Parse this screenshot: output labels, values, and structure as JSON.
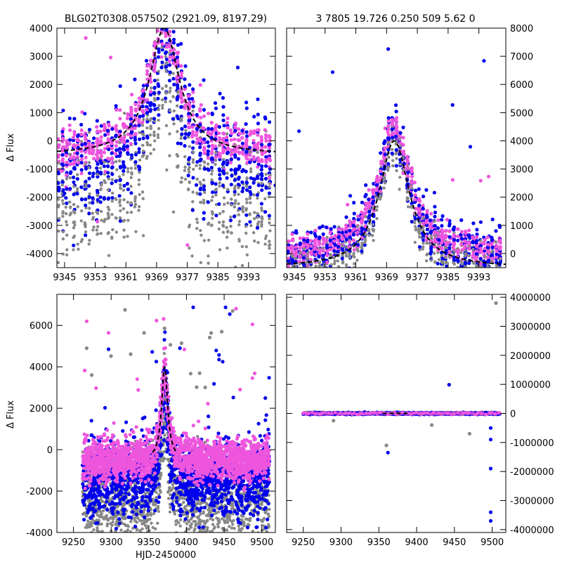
{
  "figure": {
    "title_left": "BLG02T0308.057502 (2921.09, 8197.29)",
    "title_right": "3 7805 19.726 0.250 509   5.62     0"
  },
  "colors": {
    "grey": "#888888",
    "blue": "#0000ee",
    "pink": "#ee55dd",
    "model": "#000000"
  },
  "chart_data": [
    {
      "type": "scatter",
      "name": "top-left",
      "xlim": [
        9343,
        9400
      ],
      "ylim": [
        -4500,
        4000
      ],
      "xticks": [
        9345,
        9353,
        9361,
        9369,
        9377,
        9385,
        9393
      ],
      "yticks": [
        -4000,
        -3000,
        -2000,
        -1000,
        0,
        1000,
        2000,
        3000,
        4000
      ],
      "ytick_side": "left",
      "ylabel": "Δ Flux",
      "xlabel": "",
      "model": {
        "t0": 9371,
        "baseline": -500,
        "peak": 4000,
        "tE": 4.8
      }
    },
    {
      "type": "scatter",
      "name": "top-right",
      "xlim": [
        9343,
        9400
      ],
      "ylim": [
        -500,
        8000
      ],
      "xticks": [
        9345,
        9353,
        9361,
        9369,
        9377,
        9385,
        9393
      ],
      "yticks": [
        0,
        1000,
        2000,
        3000,
        4000,
        5000,
        6000,
        7000,
        8000
      ],
      "ytick_side": "right",
      "ylabel": "",
      "xlabel": "",
      "model": {
        "t0": 9371,
        "baseline": -500,
        "peak": 4000,
        "tE": 4.8
      }
    },
    {
      "type": "scatter",
      "name": "bottom-left",
      "xlim": [
        9228,
        9518
      ],
      "ylim": [
        -4000,
        7500
      ],
      "xticks": [
        9250,
        9300,
        9350,
        9400,
        9450,
        9500
      ],
      "yticks": [
        -4000,
        -2000,
        0,
        2000,
        4000,
        6000
      ],
      "ytick_side": "left",
      "ylabel": "Δ Flux",
      "xlabel": "HJD-2450000",
      "model": {
        "t0": 9371,
        "baseline": -500,
        "peak": 4000,
        "tE": 4.8
      }
    },
    {
      "type": "scatter",
      "name": "bottom-right",
      "xlim": [
        9228,
        9518
      ],
      "ylim": [
        -4100000,
        4100000
      ],
      "xticks": [
        9250,
        9300,
        9350,
        9400,
        9450,
        9500
      ],
      "yticks": [
        -4000000,
        -3000000,
        -2000000,
        -1000000,
        0,
        1000000,
        2000000,
        3000000,
        4000000
      ],
      "ytick_side": "right",
      "ylabel": "",
      "xlabel": "",
      "model": {
        "t0": 9371,
        "baseline": -500,
        "peak": 4000,
        "tE": 4.8
      }
    }
  ]
}
